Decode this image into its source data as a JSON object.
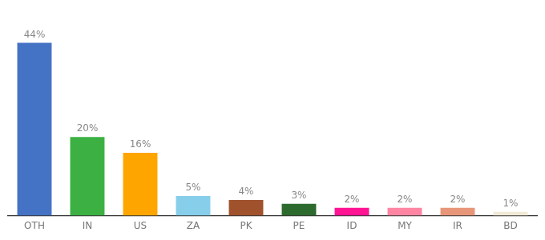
{
  "chart_data": {
    "type": "bar",
    "categories": [
      "OTH",
      "IN",
      "US",
      "ZA",
      "PK",
      "PE",
      "ID",
      "MY",
      "IR",
      "BD"
    ],
    "values": [
      44,
      20,
      16,
      5,
      4,
      3,
      2,
      2,
      2,
      1
    ],
    "value_labels": [
      "44%",
      "20%",
      "16%",
      "5%",
      "4%",
      "3%",
      "2%",
      "2%",
      "2%",
      "1%"
    ],
    "colors": [
      "#4472C4",
      "#3CB043",
      "#FFA500",
      "#87CEEB",
      "#A0522D",
      "#2D6A2D",
      "#FF1493",
      "#FF85A2",
      "#E8967A",
      "#F0EAD6"
    ],
    "ylim": [
      0,
      50
    ],
    "grid": false,
    "data_labels": true,
    "tick_labels": "x"
  }
}
